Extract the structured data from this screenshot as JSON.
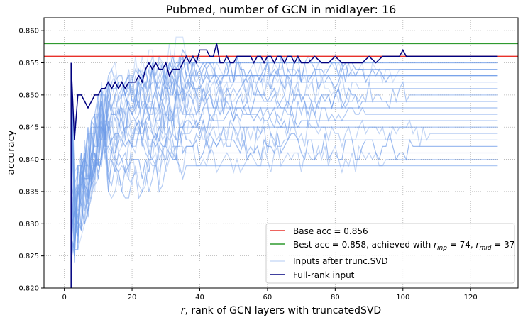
{
  "chart_data": {
    "type": "line",
    "title": "Pubmed, number of GCN in midlayer: 16",
    "xlabel": "r, rank of GCN layers with truncatedSVD",
    "xlabel_italic": "r",
    "xlabel_rest": ", rank of GCN layers with truncatedSVD",
    "ylabel": "accuracy",
    "xlim": [
      -6,
      134
    ],
    "ylim": [
      0.82,
      0.862
    ],
    "xticks": [
      0,
      20,
      40,
      60,
      80,
      100,
      120
    ],
    "yticks": [
      0.82,
      0.825,
      0.83,
      0.835,
      0.84,
      0.845,
      0.85,
      0.855,
      0.86
    ],
    "grid": true,
    "legend_position": "lower-right",
    "base_acc": {
      "label": "Base acc = 0.856",
      "value": 0.856,
      "color": "#e8302a"
    },
    "best_acc": {
      "label_main": "Best acc = 0.858, achieved with ",
      "label_r_inp": "r",
      "label_inp_sub": "inp",
      "label_mid": " = 74, ",
      "label_r_mid": "r",
      "label_mid_sub": "mid",
      "label_end": " = 37",
      "value": 0.858,
      "r_inp": 74,
      "r_mid": 37,
      "color": "#2f9a2f"
    },
    "trunc_series": {
      "label": "Inputs after trunc.SVD",
      "color": "#6d9be8",
      "x_start": 2,
      "x_end": 128,
      "finals": [
        0.856,
        0.855,
        0.855,
        0.854,
        0.854,
        0.853,
        0.853,
        0.852,
        0.851,
        0.851,
        0.85,
        0.849,
        0.848,
        0.848,
        0.847,
        0.846,
        0.845,
        0.844,
        0.843,
        0.842,
        0.841,
        0.84,
        0.839,
        0.853,
        0.849,
        0.845
      ]
    },
    "full_rank": {
      "label": "Full-rank input",
      "color": "#00007f",
      "x": [
        2,
        3,
        4,
        5,
        6,
        7,
        8,
        9,
        10,
        11,
        12,
        13,
        14,
        15,
        16,
        17,
        18,
        19,
        20,
        21,
        22,
        23,
        24,
        25,
        26,
        27,
        28,
        29,
        30,
        31,
        32,
        33,
        34,
        35,
        36,
        37,
        38,
        39,
        40,
        41,
        42,
        43,
        44,
        45,
        46,
        47,
        48,
        49,
        50,
        51,
        52,
        53,
        54,
        55,
        56,
        57,
        58,
        59,
        60,
        61,
        62,
        63,
        64,
        65,
        66,
        67,
        68,
        69,
        70,
        72,
        74,
        76,
        78,
        80,
        82,
        84,
        86,
        88,
        90,
        92,
        94,
        96,
        98,
        99,
        100,
        101,
        102,
        104,
        106,
        108,
        110,
        112,
        114,
        116,
        118,
        120,
        122,
        124,
        126,
        128
      ],
      "y": [
        0.855,
        0.843,
        0.85,
        0.85,
        0.849,
        0.848,
        0.849,
        0.85,
        0.85,
        0.851,
        0.851,
        0.852,
        0.851,
        0.852,
        0.851,
        0.852,
        0.851,
        0.852,
        0.852,
        0.852,
        0.853,
        0.852,
        0.854,
        0.855,
        0.854,
        0.855,
        0.854,
        0.854,
        0.855,
        0.853,
        0.854,
        0.854,
        0.854,
        0.855,
        0.856,
        0.855,
        0.856,
        0.855,
        0.857,
        0.857,
        0.857,
        0.856,
        0.856,
        0.858,
        0.855,
        0.855,
        0.856,
        0.855,
        0.855,
        0.856,
        0.856,
        0.856,
        0.856,
        0.856,
        0.855,
        0.856,
        0.856,
        0.855,
        0.856,
        0.856,
        0.855,
        0.856,
        0.856,
        0.855,
        0.856,
        0.856,
        0.855,
        0.856,
        0.855,
        0.855,
        0.856,
        0.855,
        0.855,
        0.856,
        0.855,
        0.855,
        0.855,
        0.855,
        0.856,
        0.855,
        0.856,
        0.856,
        0.856,
        0.856,
        0.857,
        0.856,
        0.856,
        0.856,
        0.856,
        0.856,
        0.856,
        0.856,
        0.856,
        0.856,
        0.856,
        0.856,
        0.856,
        0.856,
        0.856,
        0.856
      ]
    }
  }
}
